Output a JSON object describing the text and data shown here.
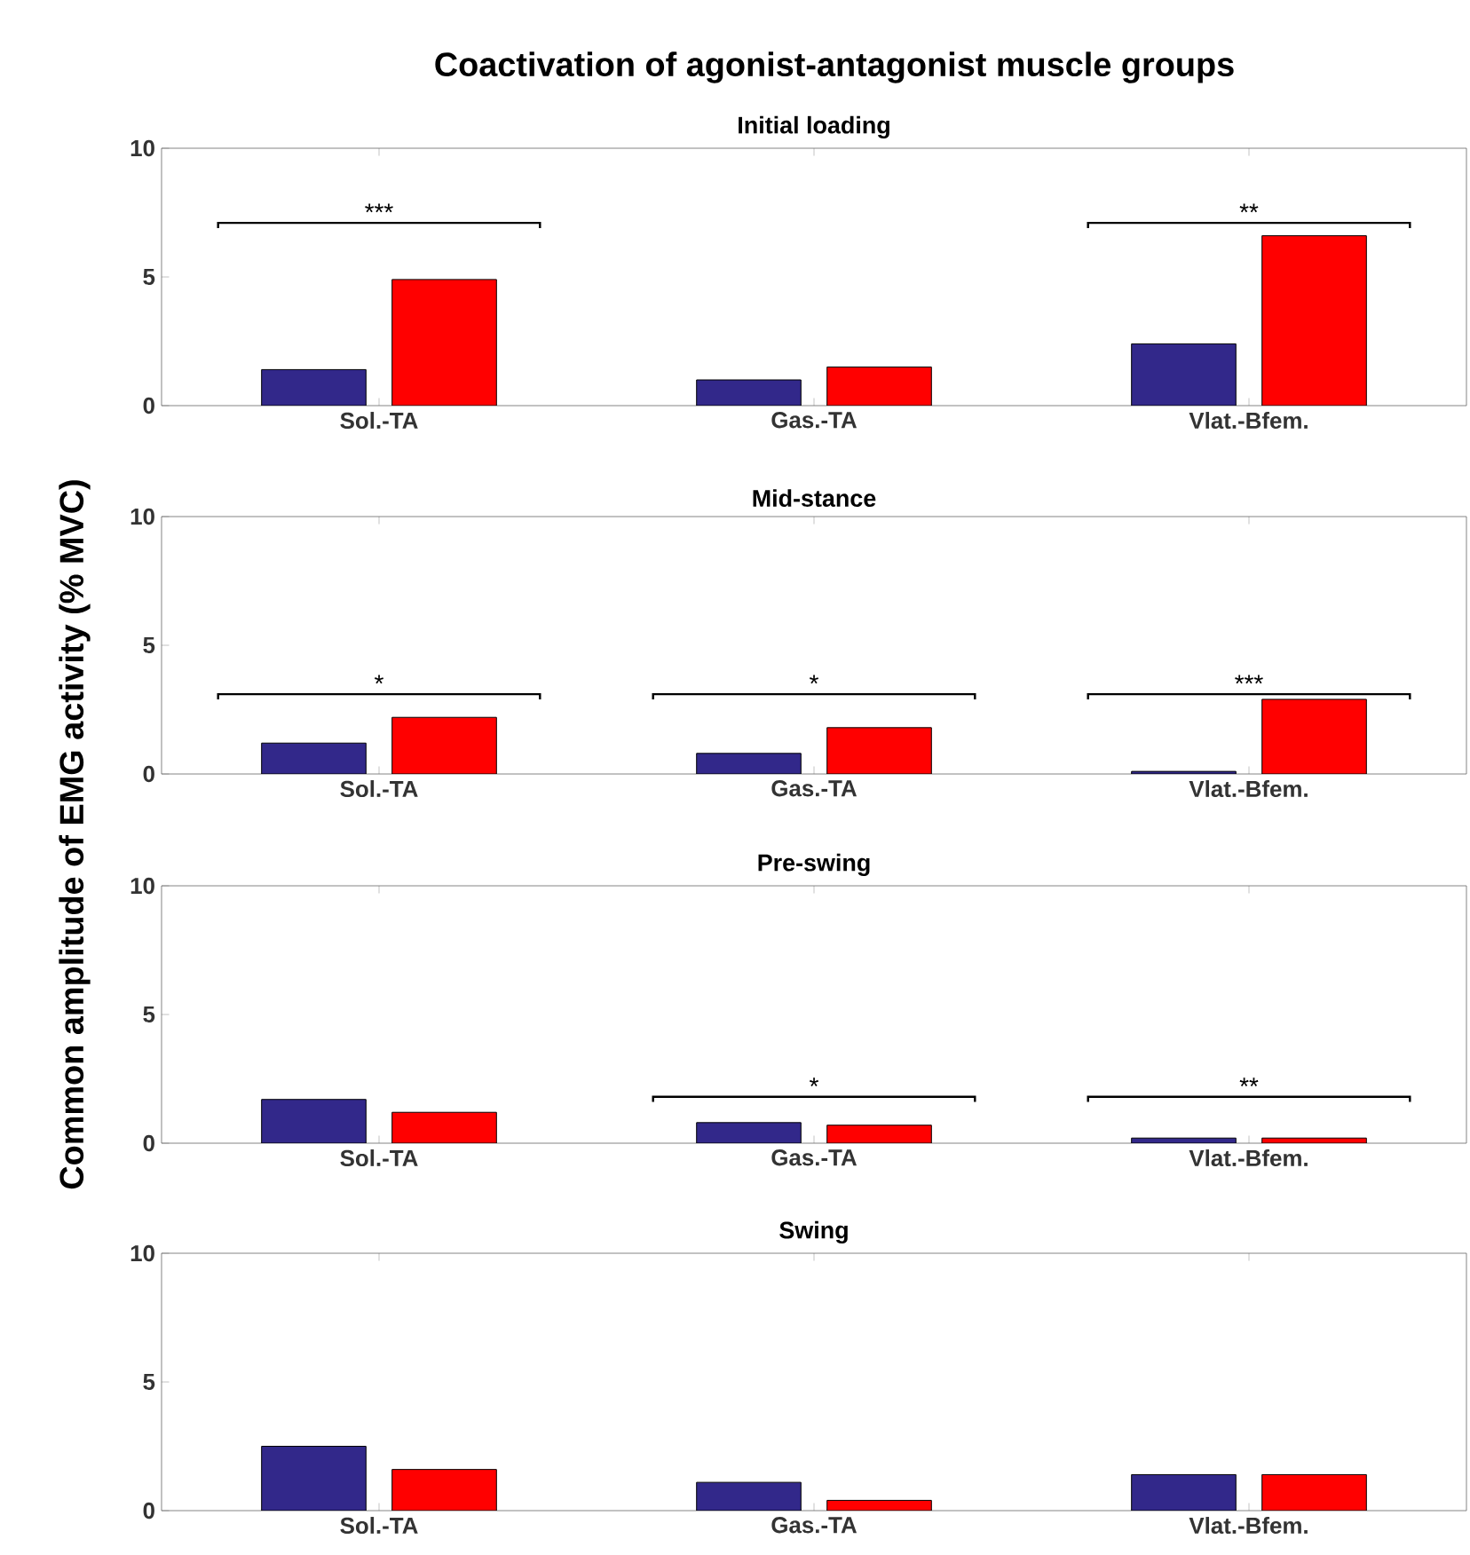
{
  "chart_data": [
    {
      "type": "bar",
      "title": "Coactivation of agonist-antagonist muscle groups",
      "subtitle": "Initial loading",
      "ylabel": "Common amplitude of EMG activity  (% MVC)",
      "categories": [
        "Sol.-TA",
        "Gas.-TA",
        "Vlat.-Bfem."
      ],
      "series": [
        {
          "color": "#32288a",
          "values": [
            1.4,
            1.0,
            2.4
          ]
        },
        {
          "color": "#ff0000",
          "values": [
            4.9,
            1.5,
            6.6
          ]
        }
      ],
      "ylim": [
        0,
        10
      ],
      "yticks": [
        0,
        5,
        10
      ],
      "annotations": [
        "***",
        "**"
      ]
    },
    {
      "type": "bar",
      "title": "Mid-stance",
      "categories": [
        "Sol.-TA",
        "Gas.-TA",
        "Vlat.-Bfem."
      ],
      "series": [
        {
          "color": "#32288a",
          "values": [
            1.2,
            0.8,
            0.1
          ]
        },
        {
          "color": "#ff0000",
          "values": [
            2.2,
            1.8,
            2.9
          ]
        }
      ],
      "ylim": [
        0,
        10
      ],
      "yticks": [
        0,
        5,
        10
      ],
      "annotations": [
        "*",
        "*",
        "***"
      ]
    },
    {
      "type": "bar",
      "title": "Pre-swing",
      "categories": [
        "Sol.-TA",
        "Gas.-TA",
        "Vlat.-Bfem."
      ],
      "series": [
        {
          "color": "#32288a",
          "values": [
            1.7,
            0.8,
            0.2
          ]
        },
        {
          "color": "#ff0000",
          "values": [
            1.2,
            0.7,
            0.2
          ]
        }
      ],
      "ylim": [
        0,
        10
      ],
      "yticks": [
        0,
        5,
        10
      ],
      "annotations": [
        "*",
        "**"
      ]
    },
    {
      "type": "bar",
      "title": "Swing",
      "categories": [
        "Sol.-TA",
        "Gas.-TA",
        "Vlat.-Bfem."
      ],
      "series": [
        {
          "color": "#32288a",
          "values": [
            2.5,
            1.1,
            1.4
          ]
        },
        {
          "color": "#ff0000",
          "values": [
            1.6,
            0.4,
            1.4
          ]
        }
      ],
      "ylim": [
        0,
        10
      ],
      "yticks": [
        0,
        5,
        10
      ]
    }
  ]
}
